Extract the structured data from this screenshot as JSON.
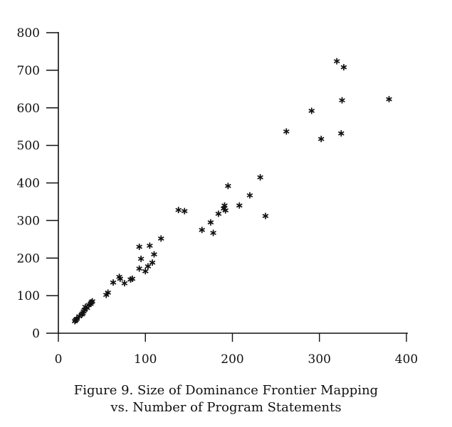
{
  "chart_data": {
    "type": "scatter",
    "title": "",
    "xlabel": "",
    "ylabel": "",
    "xlim": [
      0,
      400
    ],
    "ylim": [
      0,
      800
    ],
    "x_ticks": [
      "0",
      "100",
      "200",
      "300",
      "400"
    ],
    "y_ticks": [
      "0",
      "100",
      "200",
      "300",
      "400",
      "500",
      "600",
      "700",
      "800"
    ],
    "marker": "*",
    "grid": false,
    "series": [
      {
        "x": [
          19,
          20,
          21,
          24,
          27,
          28,
          29,
          30,
          31,
          33,
          35,
          37,
          38,
          39,
          55,
          57,
          63,
          70,
          71,
          76,
          83,
          85,
          93,
          93,
          95,
          100,
          103,
          105,
          108,
          110,
          118,
          138,
          145,
          165,
          175,
          178,
          184,
          190,
          191,
          192,
          195,
          208,
          220,
          232,
          238,
          262,
          291,
          302,
          325,
          326,
          328,
          380
        ],
        "y": [
          32,
          35,
          38,
          45,
          50,
          53,
          58,
          62,
          70,
          67,
          75,
          78,
          82,
          85,
          102,
          108,
          135,
          150,
          145,
          133,
          143,
          145,
          172,
          230,
          198,
          165,
          178,
          233,
          188,
          210,
          252,
          328,
          325,
          275,
          295,
          267,
          318,
          332,
          340,
          327,
          392,
          340,
          367,
          415,
          312,
          537,
          592,
          517,
          532,
          620,
          708,
          623
        ]
      },
      {
        "x": [
          320
        ],
        "y": [
          724
        ]
      }
    ]
  },
  "caption": {
    "line1": "Figure 9. Size of Dominance Frontier Mapping",
    "line2": "vs. Number of Program Statements"
  }
}
